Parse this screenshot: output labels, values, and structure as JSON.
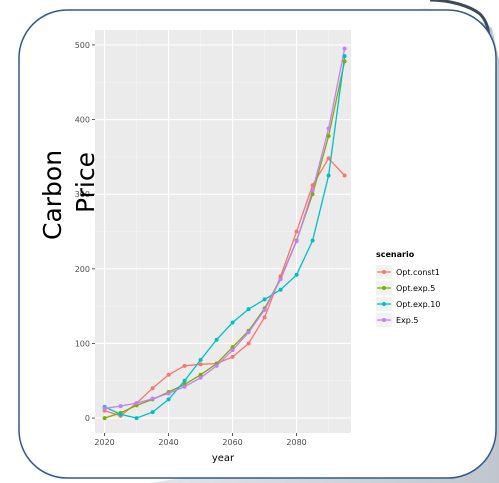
{
  "chart_data": {
    "type": "line",
    "xlabel": "year",
    "ylabel": "Carbon Price",
    "xlim": [
      2017,
      2097
    ],
    "ylim": [
      -20,
      520
    ],
    "xticks": [
      2020,
      2040,
      2060,
      2080
    ],
    "yticks": [
      0,
      100,
      200,
      300,
      400,
      500
    ],
    "grid": true,
    "legend_title": "scenario",
    "legend_position": "right",
    "series": [
      {
        "name": "Opt.const1",
        "color": "#F8766D",
        "x": [
          2020,
          2025,
          2030,
          2035,
          2040,
          2045,
          2050,
          2055,
          2060,
          2065,
          2070,
          2075,
          2080,
          2085,
          2090,
          2095
        ],
        "y": [
          10,
          3,
          20,
          40,
          58,
          70,
          72,
          73,
          82,
          100,
          135,
          190,
          250,
          312,
          348,
          325
        ]
      },
      {
        "name": "Opt.exp.5",
        "color": "#7CAE00",
        "x": [
          2020,
          2025,
          2030,
          2035,
          2040,
          2045,
          2050,
          2055,
          2060,
          2065,
          2070,
          2075,
          2080,
          2085,
          2090,
          2095
        ],
        "y": [
          0,
          7,
          17,
          25,
          35,
          45,
          58,
          73,
          95,
          117,
          147,
          187,
          238,
          300,
          378,
          478
        ]
      },
      {
        "name": "Opt.exp.10",
        "color": "#00BFC4",
        "x": [
          2020,
          2025,
          2030,
          2035,
          2040,
          2045,
          2050,
          2055,
          2060,
          2065,
          2070,
          2075,
          2080,
          2085,
          2090,
          2095
        ],
        "y": [
          15,
          5,
          0,
          8,
          25,
          50,
          78,
          105,
          128,
          146,
          159,
          172,
          192,
          238,
          325,
          485
        ]
      },
      {
        "name": "Exp.5",
        "color": "#C77CFF",
        "x": [
          2020,
          2025,
          2030,
          2035,
          2040,
          2045,
          2050,
          2055,
          2060,
          2065,
          2070,
          2075,
          2080,
          2085,
          2090,
          2095
        ],
        "y": [
          13,
          16,
          20,
          26,
          33,
          42,
          54,
          70,
          91,
          115,
          145,
          186,
          237,
          305,
          388,
          495
        ]
      }
    ]
  }
}
